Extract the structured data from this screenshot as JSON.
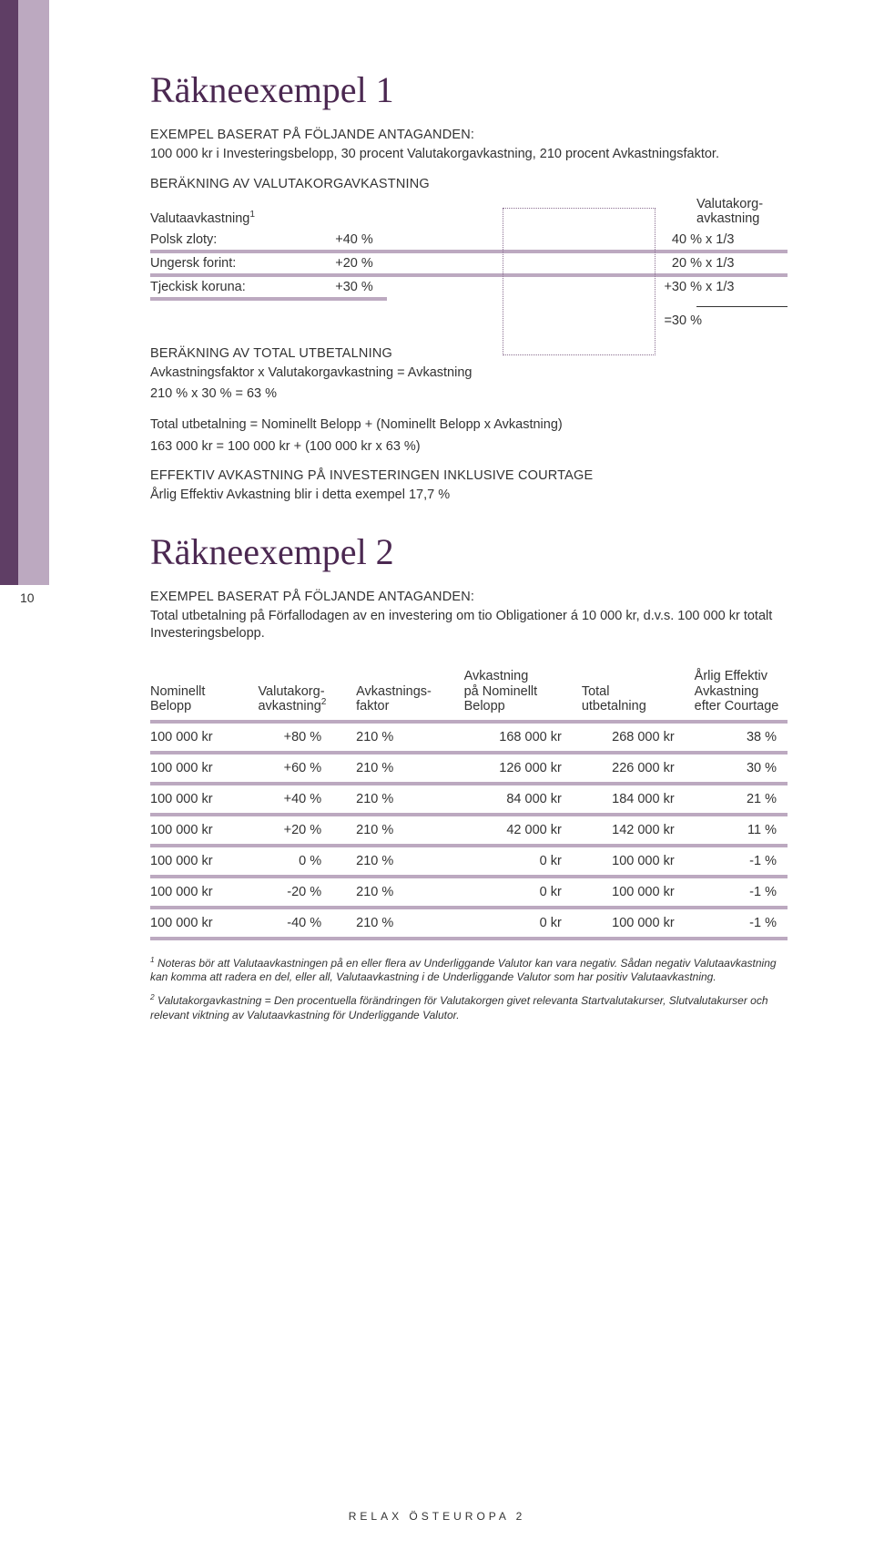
{
  "page_number": "10",
  "color_theme": {
    "accent_dark": "#5f3e65",
    "accent_light": "#bca9c0",
    "heading": "#4b2851",
    "text": "#333333",
    "background": "#ffffff"
  },
  "ex1": {
    "title": "Räkneexempel 1",
    "assumptions_heading": "EXEMPEL BASERAT PÅ FÖLJANDE ANTAGANDEN:",
    "assumptions_text": "100 000 kr i Investeringsbelopp, 30 procent Valutakorgavkastning, 210 procent Avkastningsfaktor.",
    "calc_heading": "BERÄKNING AV VALUTAKORGAVKASTNING",
    "col_left_header": "Valutaavkastning",
    "col_left_super": "1",
    "col_right_header_l1": "Valutakorg-",
    "col_right_header_l2": "avkastning",
    "rows": [
      {
        "label": "Polsk zloty:",
        "val": "+40 %",
        "pre": "",
        "res": "40 % x 1/3"
      },
      {
        "label": "Ungersk forint:",
        "val": "+20 %",
        "pre": "",
        "res": "20 % x 1/3"
      },
      {
        "label": "Tjeckisk koruna:",
        "val": "+30 %",
        "pre": "+",
        "res": "30 % x 1/3"
      }
    ],
    "result_pre": "=",
    "result": "30 %",
    "payout_heading": "BERÄKNING AV TOTAL UTBETALNING",
    "payout_line1": "Avkastningsfaktor x Valutakorgavkastning = Avkastning",
    "payout_line2": "210 %  x 30 % = 63 %",
    "payout_line3": "Total utbetalning = Nominellt Belopp + (Nominellt Belopp x Avkastning)",
    "payout_line4": "163 000 kr = 100 000 kr + (100 000 kr x 63 %)",
    "effective_heading": "EFFEKTIV AVKASTNING PÅ INVESTERINGEN INKLUSIVE COURTAGE",
    "effective_text": "Årlig Effektiv Avkastning blir i detta exempel 17,7 %"
  },
  "ex2": {
    "title": "Räkneexempel 2",
    "assumptions_heading": "EXEMPEL BASERAT PÅ FÖLJANDE ANTAGANDEN:",
    "assumptions_text": "Total utbetalning på Förfallodagen av en investering om tio Obligationer á 10 000 kr, d.v.s. 100 000 kr totalt Investeringsbelopp.",
    "headers": {
      "nom_l1": "Nominellt",
      "nom_l2": "Belopp",
      "val_l1": "Valutakorg-",
      "val_l2": "avkastning",
      "val_sup": "2",
      "fak_l1": "Avkastnings-",
      "fak_l2": "faktor",
      "avn_l1": "Avkastning",
      "avn_l2": "på Nominellt",
      "avn_l3": "Belopp",
      "tot_l1": "Total",
      "tot_l2": "utbetalning",
      "eff_l1": "Årlig Effektiv",
      "eff_l2": "Avkastning",
      "eff_l3": "efter Courtage"
    },
    "rows": [
      {
        "nom": "100 000 kr",
        "val": "+80 %",
        "fak": "210 %",
        "avn": "168 000 kr",
        "tot": "268 000 kr",
        "eff": "38 %"
      },
      {
        "nom": "100 000 kr",
        "val": "+60 %",
        "fak": "210 %",
        "avn": "126 000 kr",
        "tot": "226 000 kr",
        "eff": "30 %"
      },
      {
        "nom": "100 000 kr",
        "val": "+40 %",
        "fak": "210 %",
        "avn": "84 000 kr",
        "tot": "184 000 kr",
        "eff": "21 %"
      },
      {
        "nom": "100 000 kr",
        "val": "+20 %",
        "fak": "210 %",
        "avn": "42 000 kr",
        "tot": "142 000 kr",
        "eff": "11 %"
      },
      {
        "nom": "100 000 kr",
        "val": "0 %",
        "fak": "210 %",
        "avn": "0 kr",
        "tot": "100 000 kr",
        "eff": "-1 %"
      },
      {
        "nom": "100 000 kr",
        "val": "-20 %",
        "fak": "210 %",
        "avn": "0 kr",
        "tot": "100 000 kr",
        "eff": "-1 %"
      },
      {
        "nom": "100 000 kr",
        "val": "-40 %",
        "fak": "210 %",
        "avn": "0 kr",
        "tot": "100 000 kr",
        "eff": "-1 %"
      }
    ]
  },
  "footnote1_sup": "1",
  "footnote1": " Noteras bör att Valutaavkastningen på en eller flera av Underliggande Valutor kan vara negativ. Sådan negativ Valutaavkastning kan komma att radera en del, eller all, Valutaavkastning i de Underliggande Valutor som har positiv Valutaavkastning.",
  "footnote2_sup": "2",
  "footnote2": " Valutakorgavkastning = Den procentuella förändringen för Valutakorgen givet relevanta Startvalutakurser, Slutvalutakurser och relevant viktning av Valutaavkastning för Underliggande Valutor.",
  "footer": "RELAX ÖSTEUROPA 2"
}
